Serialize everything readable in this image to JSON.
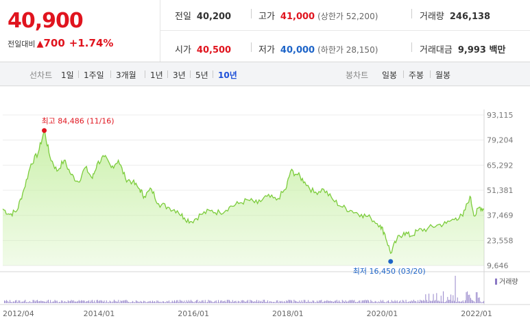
{
  "quote": {
    "price": "40,900",
    "change_label": "전일대비",
    "change_arrow": "▲",
    "change_amount": "700",
    "change_percent": "+1.74%",
    "prev_close": {
      "label": "전일",
      "value": "40,200"
    },
    "high": {
      "label": "고가",
      "value": "41,000",
      "sub": "(상한가 52,200)"
    },
    "volume": {
      "label": "거래량",
      "value": "246,138"
    },
    "open": {
      "label": "시가",
      "value": "40,500"
    },
    "low": {
      "label": "저가",
      "value": "40,000",
      "sub": "(하한가 28,150)"
    },
    "trade_value": {
      "label": "거래대금",
      "value": "9,993 백만"
    },
    "colors": {
      "up": "#e0141e",
      "down": "#1d64c8"
    }
  },
  "toolbar": {
    "line_chart_label": "선차트",
    "periods": [
      "1일",
      "1주일",
      "3개월",
      "1년",
      "3년",
      "5년",
      "10년"
    ],
    "active_period": "10년",
    "candle_chart_label": "봉차트",
    "candle_periods": [
      "일봉",
      "주봉",
      "월봉"
    ]
  },
  "chart_data": {
    "type": "area",
    "title": "",
    "xlabel": "",
    "ylabel": "",
    "x_ticks": [
      "2012/04",
      "2014/01",
      "2016/01",
      "2018/01",
      "2020/01",
      "2022/01"
    ],
    "y_ticks": [
      93115,
      79204,
      65292,
      51381,
      37469,
      23558,
      9646
    ],
    "y_tick_labels": [
      "93,115",
      "79,204",
      "65,292",
      "51,381",
      "37,469",
      "23,558",
      "9,646"
    ],
    "ylim": [
      9646,
      93115
    ],
    "grid": true,
    "fill_color": "#c9f0a8",
    "line_color": "#7ccc3c",
    "volume_color": "#8a78c4",
    "volume_legend": "거래량",
    "max_annotation": {
      "label": "최고 84,486 (11/16)",
      "year": 2012.88,
      "value": 84486
    },
    "min_annotation": {
      "label": "최저 16,450 (03/20)",
      "year": 2020.22,
      "value": 16450
    },
    "series": [
      {
        "x": [
          2012.0,
          2012.15,
          2012.3,
          2012.45,
          2012.6,
          2012.75,
          2012.88,
          2013.0,
          2013.15,
          2013.3,
          2013.45,
          2013.6,
          2013.75,
          2013.9,
          2014.0,
          2014.15,
          2014.3,
          2014.45,
          2014.6,
          2014.75,
          2014.9,
          2015.0,
          2015.15,
          2015.3,
          2015.5,
          2015.7,
          2015.85,
          2016.0,
          2016.2,
          2016.4,
          2016.6,
          2016.8,
          2017.0,
          2017.2,
          2017.4,
          2017.6,
          2017.8,
          2018.0,
          2018.1,
          2018.25,
          2018.4,
          2018.6,
          2018.8,
          2019.0,
          2019.2,
          2019.4,
          2019.6,
          2019.8,
          2020.0,
          2020.1,
          2020.22,
          2020.35,
          2020.5,
          2020.65,
          2020.8,
          2021.0,
          2021.2,
          2021.4,
          2021.6,
          2021.75,
          2021.9,
          2022.0,
          2022.1,
          2022.2
        ],
        "y": [
          41000,
          38000,
          40000,
          52000,
          66000,
          72000,
          84486,
          70000,
          62000,
          68000,
          60000,
          56000,
          64000,
          58000,
          66000,
          70000,
          64000,
          68000,
          58000,
          56000,
          52000,
          48000,
          52000,
          44000,
          42000,
          40000,
          36000,
          34000,
          38000,
          40000,
          39000,
          42000,
          44000,
          46000,
          44000,
          48000,
          46000,
          52000,
          62000,
          60000,
          56000,
          50000,
          52000,
          46000,
          42000,
          40000,
          38000,
          36000,
          32000,
          27000,
          16450,
          24000,
          28000,
          26000,
          29000,
          30000,
          32000,
          33000,
          36000,
          37000,
          48000,
          37000,
          42000,
          40900
        ]
      }
    ]
  }
}
